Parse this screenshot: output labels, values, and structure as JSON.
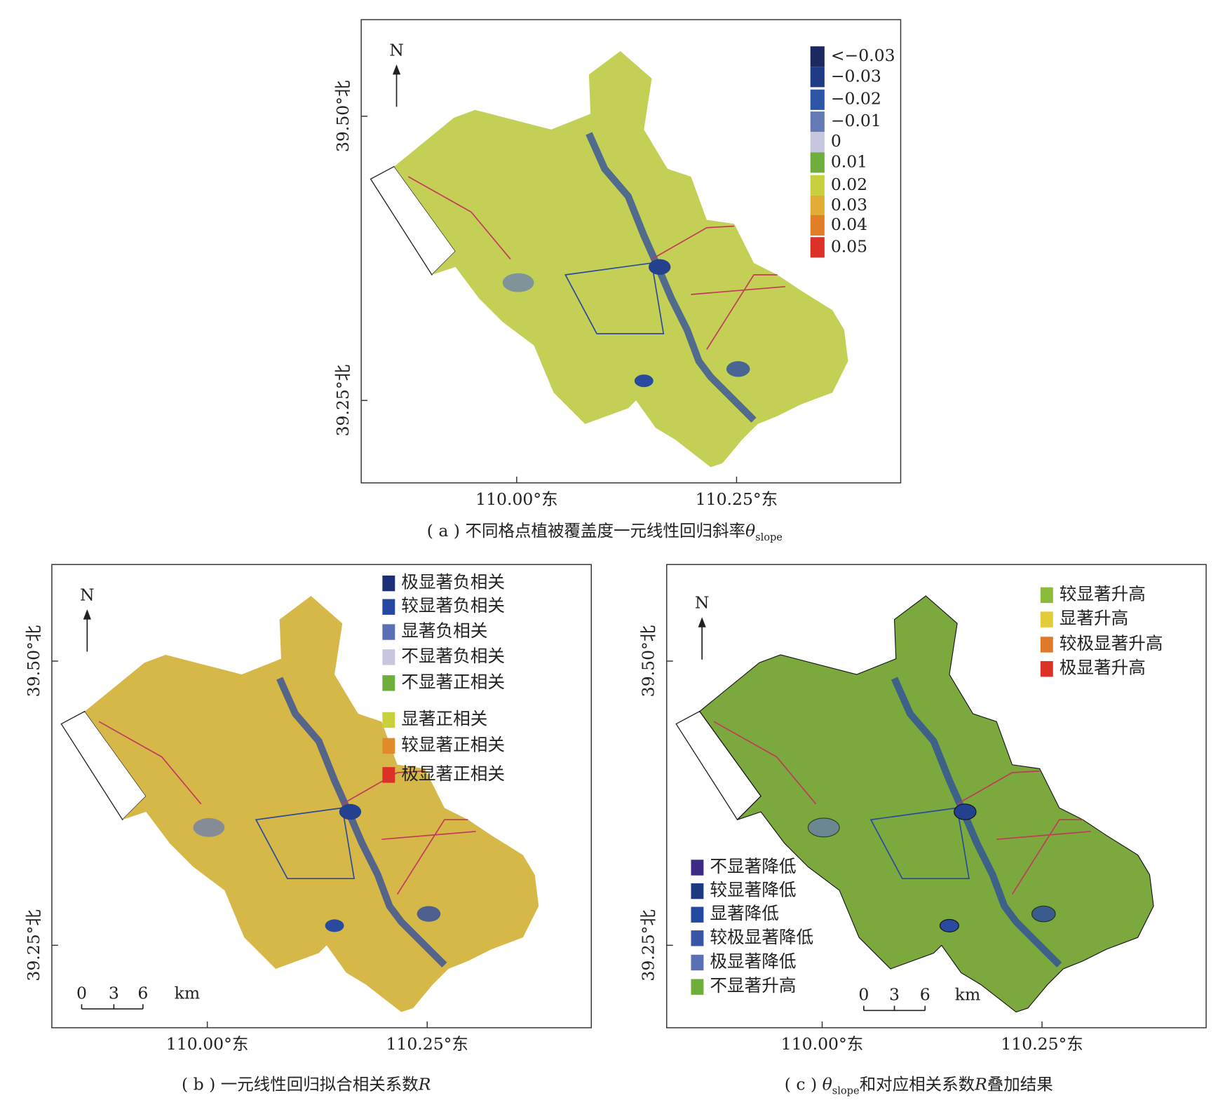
{
  "panels": [
    {
      "north": "N",
      "y_labels": [
        "39.50°北",
        "39.25°北"
      ],
      "x_labels": [
        "110.00°东",
        "110.25°东"
      ],
      "legend": [
        {
          "label": "<−0.03",
          "color": "#1c2860"
        },
        {
          "label": "−0.03",
          "color": "#1f3a86"
        },
        {
          "label": "−0.02",
          "color": "#2c55a6"
        },
        {
          "label": "−0.01",
          "color": "#6479b6"
        },
        {
          "label": "0",
          "color": "#c6c6de"
        },
        {
          "label": "0.01",
          "color": "#6fae3d"
        },
        {
          "label": "0.02",
          "color": "#c8d03c"
        },
        {
          "label": "0.03",
          "color": "#e1ad35"
        },
        {
          "label": "0.04",
          "color": "#e07f25"
        },
        {
          "label": "0.05",
          "color": "#dc3127"
        }
      ],
      "caption": [
        {
          "text": "( a ) 不同格点植被覆盖度一元线性回归斜率"
        },
        {
          "text": "θ",
          "italic": true
        },
        {
          "text": "slope",
          "sub": true
        }
      ]
    },
    {
      "north": "N",
      "y_labels": [
        "39.50°北",
        "39.25°北"
      ],
      "x_labels": [
        "110.00°东",
        "110.25°东"
      ],
      "legend": [
        {
          "label": "极显著负相关",
          "color": "#1c2f78"
        },
        {
          "label": "较显著负相关",
          "color": "#2647a0"
        },
        {
          "label": "显著负相关",
          "color": "#5a6fb4"
        },
        {
          "label": "不显著负相关",
          "color": "#c6c6de"
        },
        {
          "label": "不显著正相关",
          "color": "#6fae3d"
        },
        {
          "label": "显著正相关",
          "color": "#c8d03c"
        },
        {
          "label": "较显著正相关",
          "color": "#e08a2a"
        },
        {
          "label": "极显著正相关",
          "color": "#dc3127"
        }
      ],
      "scale_bar": [
        "0",
        "3",
        "6",
        "km"
      ],
      "caption": [
        {
          "text": "( b ) 一元线性回归拟合相关系数"
        },
        {
          "text": "R",
          "italic": true
        }
      ]
    },
    {
      "north": "N",
      "y_labels": [
        "39.50°北",
        "39.25°北"
      ],
      "x_labels": [
        "110.00°东",
        "110.25°东"
      ],
      "legend": [
        {
          "label": "较显著升高",
          "color": "#8bbb3a"
        },
        {
          "label": "显著升高",
          "color": "#e3cc3a"
        },
        {
          "label": "较极显著升高",
          "color": "#e07a2a"
        },
        {
          "label": "极显著升高",
          "color": "#dc3127"
        },
        {
          "label": "不显著降低",
          "color": "#3d2a86"
        },
        {
          "label": "较显著降低",
          "color": "#1d3a80"
        },
        {
          "label": "显著降低",
          "color": "#2348a0"
        },
        {
          "label": "较极显著降低",
          "color": "#3a55a6"
        },
        {
          "label": "极显著降低",
          "color": "#5a6fb4"
        },
        {
          "label": "不显著升高",
          "color": "#6fae3d"
        }
      ],
      "scale_bar": [
        "0",
        "3",
        "6",
        "km"
      ],
      "caption": [
        {
          "text": "( c ) "
        },
        {
          "text": "θ",
          "italic": true
        },
        {
          "text": "slope",
          "sub": true
        },
        {
          "text": "和对应相关系数"
        },
        {
          "text": "R",
          "italic": true
        },
        {
          "text": "叠加结果"
        }
      ]
    }
  ]
}
